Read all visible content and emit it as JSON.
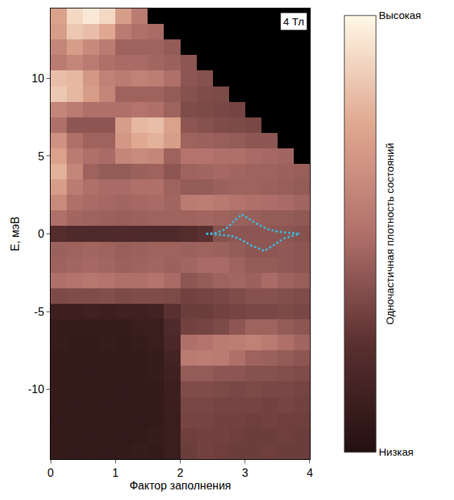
{
  "chart_data": {
    "type": "heatmap",
    "xlabel": "Фактор заполнения",
    "ylabel": "E, мэВ",
    "annotations": [
      {
        "text": "4 Тл"
      }
    ],
    "xlim": [
      0,
      4
    ],
    "ylim": [
      -14.5,
      14.5
    ],
    "xticks": [
      0,
      1,
      2,
      3,
      4
    ],
    "yticks": [
      -10,
      -5,
      0,
      5,
      10
    ],
    "x": [
      0.125,
      0.375,
      0.625,
      0.875,
      1.125,
      1.375,
      1.625,
      1.875,
      2.125,
      2.375,
      2.625,
      2.875,
      3.125,
      3.375,
      3.625,
      3.875
    ],
    "y": [
      -14,
      -13,
      -12,
      -11,
      -10,
      -9,
      -8,
      -7,
      -6,
      -5,
      -4,
      -3,
      -2,
      -1,
      0,
      1,
      2,
      3,
      4,
      5,
      6,
      7,
      8,
      9,
      10,
      11,
      12,
      13,
      14
    ],
    "z": [
      [
        0.08,
        0.07,
        0.08,
        0.07,
        0.08,
        0.09,
        0.08,
        0.1,
        0.3,
        0.32,
        0.31,
        0.3,
        0.3,
        0.31,
        0.3,
        0.3
      ],
      [
        0.08,
        0.08,
        0.07,
        0.08,
        0.07,
        0.08,
        0.09,
        0.1,
        0.31,
        0.32,
        0.32,
        0.31,
        0.3,
        0.3,
        0.31,
        0.3
      ],
      [
        0.07,
        0.08,
        0.08,
        0.08,
        0.08,
        0.07,
        0.08,
        0.1,
        0.33,
        0.33,
        0.32,
        0.32,
        0.31,
        0.32,
        0.31,
        0.31
      ],
      [
        0.08,
        0.07,
        0.08,
        0.07,
        0.08,
        0.08,
        0.08,
        0.11,
        0.34,
        0.34,
        0.33,
        0.33,
        0.33,
        0.32,
        0.33,
        0.32
      ],
      [
        0.08,
        0.08,
        0.08,
        0.08,
        0.07,
        0.08,
        0.08,
        0.12,
        0.36,
        0.36,
        0.35,
        0.34,
        0.35,
        0.34,
        0.34,
        0.33
      ],
      [
        0.08,
        0.08,
        0.07,
        0.08,
        0.08,
        0.08,
        0.09,
        0.13,
        0.42,
        0.42,
        0.4,
        0.4,
        0.38,
        0.38,
        0.37,
        0.36
      ],
      [
        0.08,
        0.08,
        0.08,
        0.08,
        0.08,
        0.08,
        0.09,
        0.15,
        0.55,
        0.56,
        0.55,
        0.5,
        0.45,
        0.44,
        0.42,
        0.4
      ],
      [
        0.09,
        0.08,
        0.08,
        0.09,
        0.08,
        0.09,
        0.1,
        0.18,
        0.5,
        0.52,
        0.55,
        0.56,
        0.58,
        0.55,
        0.5,
        0.46
      ],
      [
        0.09,
        0.09,
        0.09,
        0.09,
        0.09,
        0.1,
        0.1,
        0.2,
        0.32,
        0.33,
        0.35,
        0.4,
        0.45,
        0.45,
        0.42,
        0.4
      ],
      [
        0.12,
        0.12,
        0.13,
        0.12,
        0.13,
        0.13,
        0.14,
        0.25,
        0.3,
        0.3,
        0.32,
        0.33,
        0.34,
        0.34,
        0.35,
        0.34
      ],
      [
        0.35,
        0.36,
        0.36,
        0.37,
        0.35,
        0.36,
        0.36,
        0.35,
        0.32,
        0.33,
        0.34,
        0.36,
        0.38,
        0.38,
        0.37,
        0.36
      ],
      [
        0.5,
        0.52,
        0.53,
        0.52,
        0.5,
        0.5,
        0.52,
        0.48,
        0.4,
        0.42,
        0.45,
        0.46,
        0.44,
        0.48,
        0.45,
        0.43
      ],
      [
        0.45,
        0.46,
        0.47,
        0.46,
        0.44,
        0.45,
        0.46,
        0.44,
        0.46,
        0.48,
        0.48,
        0.45,
        0.42,
        0.42,
        0.41,
        0.4
      ],
      [
        0.44,
        0.45,
        0.46,
        0.45,
        0.43,
        0.44,
        0.45,
        0.45,
        0.44,
        0.45,
        0.44,
        0.42,
        0.4,
        0.4,
        0.41,
        0.4
      ],
      [
        0.22,
        0.2,
        0.2,
        0.2,
        0.21,
        0.2,
        0.2,
        0.2,
        0.22,
        0.25,
        0.38,
        0.4,
        0.4,
        0.4,
        0.39,
        0.38
      ],
      [
        0.5,
        0.46,
        0.45,
        0.44,
        0.43,
        0.44,
        0.45,
        0.45,
        0.45,
        0.46,
        0.45,
        0.44,
        0.43,
        0.42,
        0.42,
        0.41
      ],
      [
        0.62,
        0.5,
        0.48,
        0.47,
        0.46,
        0.47,
        0.48,
        0.46,
        0.55,
        0.56,
        0.54,
        0.52,
        0.5,
        0.49,
        0.48,
        0.46
      ],
      [
        0.7,
        0.55,
        0.5,
        0.48,
        0.48,
        0.5,
        0.5,
        0.45,
        0.42,
        0.42,
        0.44,
        0.45,
        0.45,
        0.44,
        0.43,
        0.42
      ],
      [
        0.78,
        0.6,
        0.45,
        0.42,
        0.42,
        0.44,
        0.45,
        0.4,
        0.45,
        0.46,
        0.47,
        0.46,
        0.45,
        0.45,
        0.44,
        0.43
      ],
      [
        0.72,
        0.55,
        0.5,
        0.48,
        0.6,
        0.62,
        0.6,
        0.45,
        0.52,
        0.52,
        0.5,
        0.5,
        0.48,
        0.47,
        0.46,
        null
      ],
      [
        0.65,
        0.5,
        0.45,
        0.45,
        0.68,
        0.75,
        0.78,
        0.7,
        0.45,
        0.44,
        0.43,
        0.42,
        0.4,
        0.4,
        null,
        null
      ],
      [
        0.5,
        0.4,
        0.4,
        0.4,
        0.7,
        0.8,
        0.82,
        0.72,
        0.4,
        0.38,
        0.36,
        0.35,
        0.34,
        null,
        null,
        null
      ],
      [
        0.6,
        0.55,
        0.5,
        0.5,
        0.5,
        0.52,
        0.5,
        0.45,
        0.36,
        0.35,
        0.34,
        0.33,
        null,
        null,
        null,
        null
      ],
      [
        0.85,
        0.8,
        0.7,
        0.6,
        0.45,
        0.45,
        0.45,
        0.42,
        0.38,
        0.36,
        0.35,
        null,
        null,
        null,
        null,
        null
      ],
      [
        0.82,
        0.8,
        0.68,
        0.58,
        0.55,
        0.58,
        0.56,
        0.5,
        0.4,
        0.38,
        null,
        null,
        null,
        null,
        null,
        null
      ],
      [
        0.55,
        0.6,
        0.55,
        0.5,
        0.48,
        0.48,
        0.46,
        0.44,
        0.4,
        null,
        null,
        null,
        null,
        null,
        null,
        null
      ],
      [
        0.6,
        0.7,
        0.62,
        0.55,
        0.45,
        0.45,
        0.45,
        0.42,
        null,
        null,
        null,
        null,
        null,
        null,
        null,
        null
      ],
      [
        0.7,
        0.85,
        0.82,
        0.75,
        0.55,
        0.5,
        0.48,
        null,
        null,
        null,
        null,
        null,
        null,
        null,
        null,
        null
      ],
      [
        0.72,
        0.9,
        0.95,
        0.9,
        0.7,
        0.55,
        null,
        null,
        null,
        null,
        null,
        null,
        null,
        null,
        null,
        null
      ]
    ],
    "colorbar": {
      "title": "Одночастичная плотность состояний",
      "range": [
        0,
        1
      ],
      "ticks": [
        {
          "value": 0,
          "label": "Низкая"
        },
        {
          "value": 1,
          "label": "Высокая"
        }
      ]
    },
    "curves": [
      {
        "x": [
          2.4,
          2.55,
          2.7,
          2.85,
          2.95,
          3.05,
          3.2,
          3.35,
          3.5,
          3.7,
          3.85
        ],
        "y": [
          0,
          0.05,
          0.3,
          0.9,
          1.25,
          1.0,
          0.6,
          0.3,
          0.15,
          0.05,
          0
        ],
        "color": "#3fb8d8",
        "line_style": "dotted"
      },
      {
        "x": [
          2.4,
          2.6,
          2.8,
          2.95,
          3.1,
          3.3,
          3.45,
          3.6,
          3.75,
          3.85
        ],
        "y": [
          0,
          -0.05,
          -0.15,
          -0.4,
          -0.75,
          -1.1,
          -0.7,
          -0.3,
          -0.1,
          0
        ],
        "color": "#3fb8d8",
        "line_style": "dotted"
      }
    ],
    "grid": false
  }
}
